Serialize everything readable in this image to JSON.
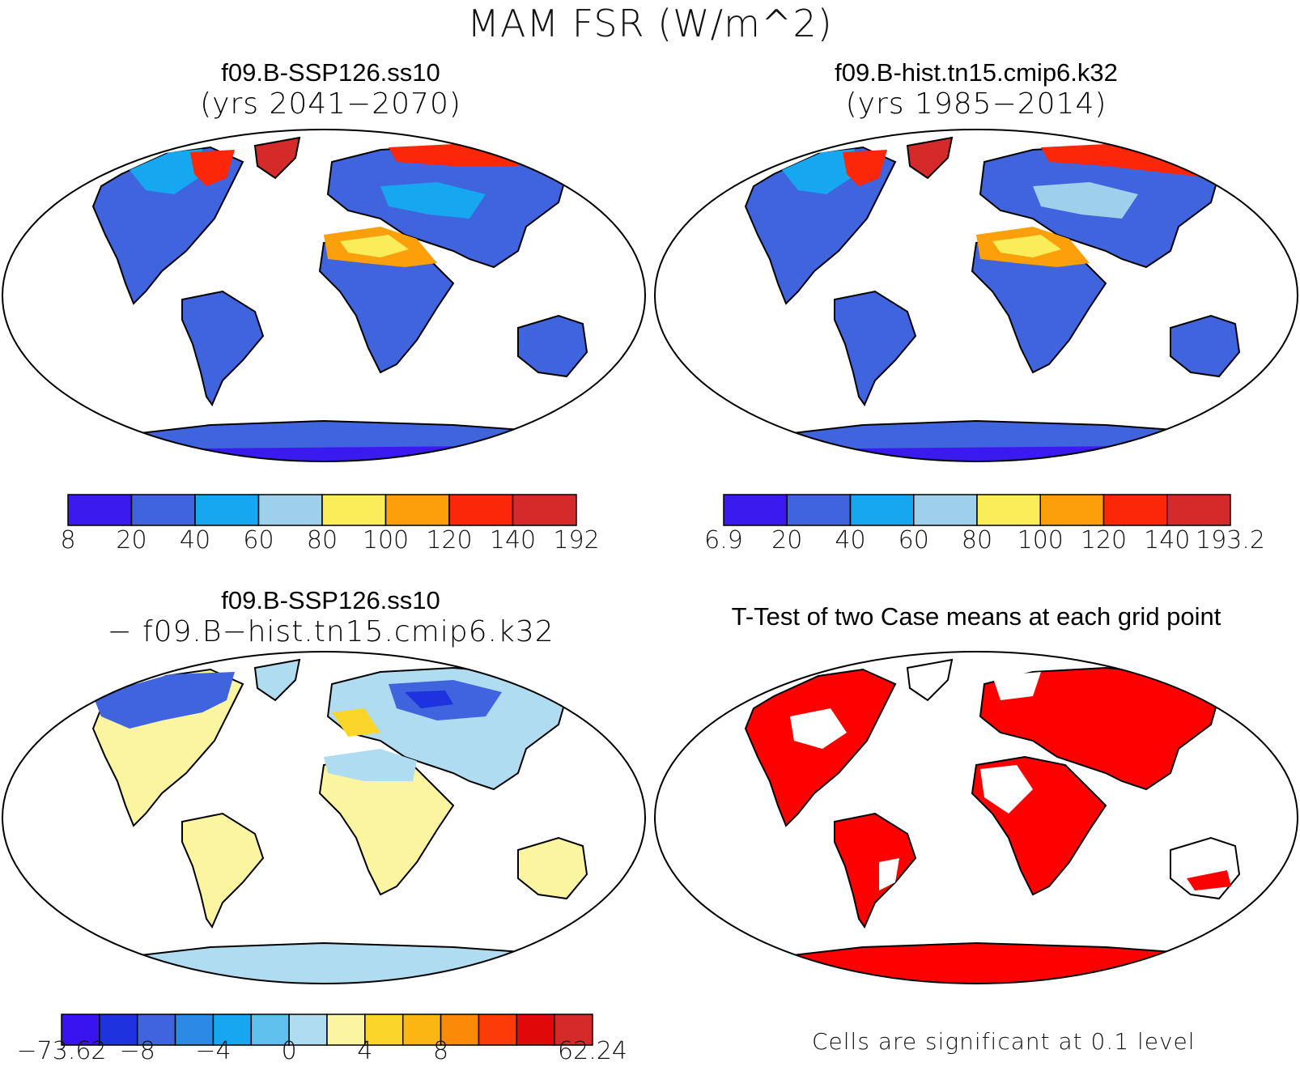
{
  "figure_title": "MAM FSR (W/m^2)",
  "panels": {
    "top_left": {
      "title_line1": "f09.B-SSP126.ss10",
      "title_line2": "(yrs 2041−2070)"
    },
    "top_right": {
      "title_line1": "f09.B-hist.tn15.cmip6.k32",
      "title_line2": "(yrs 1985−2014)"
    },
    "bottom_left": {
      "title_line1": "f09.B-SSP126.ss10",
      "title_line2": "− f09.B−hist.tn15.cmip6.k32"
    },
    "bottom_right": {
      "title_line1": "T-Test of two Case means at each grid point",
      "note": "Cells are significant at 0.1 level"
    }
  },
  "colorbars": {
    "top_left": {
      "colors": [
        "#3a1aee",
        "#3f64dd",
        "#17a6f0",
        "#9ed0ec",
        "#fbec5a",
        "#fb9f0a",
        "#fb2708",
        "#d42a2a"
      ],
      "labels": [
        "8",
        "20",
        "40",
        "60",
        "80",
        "100",
        "120",
        "140",
        "192"
      ]
    },
    "top_right": {
      "colors": [
        "#3a1aee",
        "#3f64dd",
        "#17a6f0",
        "#9ed0ec",
        "#fbec5a",
        "#fb9f0a",
        "#fb2708",
        "#d42a2a"
      ],
      "labels": [
        "6.9",
        "20",
        "40",
        "60",
        "80",
        "100",
        "120",
        "140",
        "193.2"
      ]
    },
    "bottom_left": {
      "colors": [
        "#3a14f0",
        "#1e32e0",
        "#3f64dd",
        "#2c8ae6",
        "#17a6f0",
        "#60c0ee",
        "#b0dcf2",
        "#fbf4a0",
        "#fcd52a",
        "#fbb614",
        "#fb8a08",
        "#fb3c08",
        "#e00808",
        "#d42a2a"
      ],
      "labels": [
        "−73.62",
        "−8",
        "−4",
        "0",
        "4",
        "8",
        "62.24"
      ]
    }
  }
}
